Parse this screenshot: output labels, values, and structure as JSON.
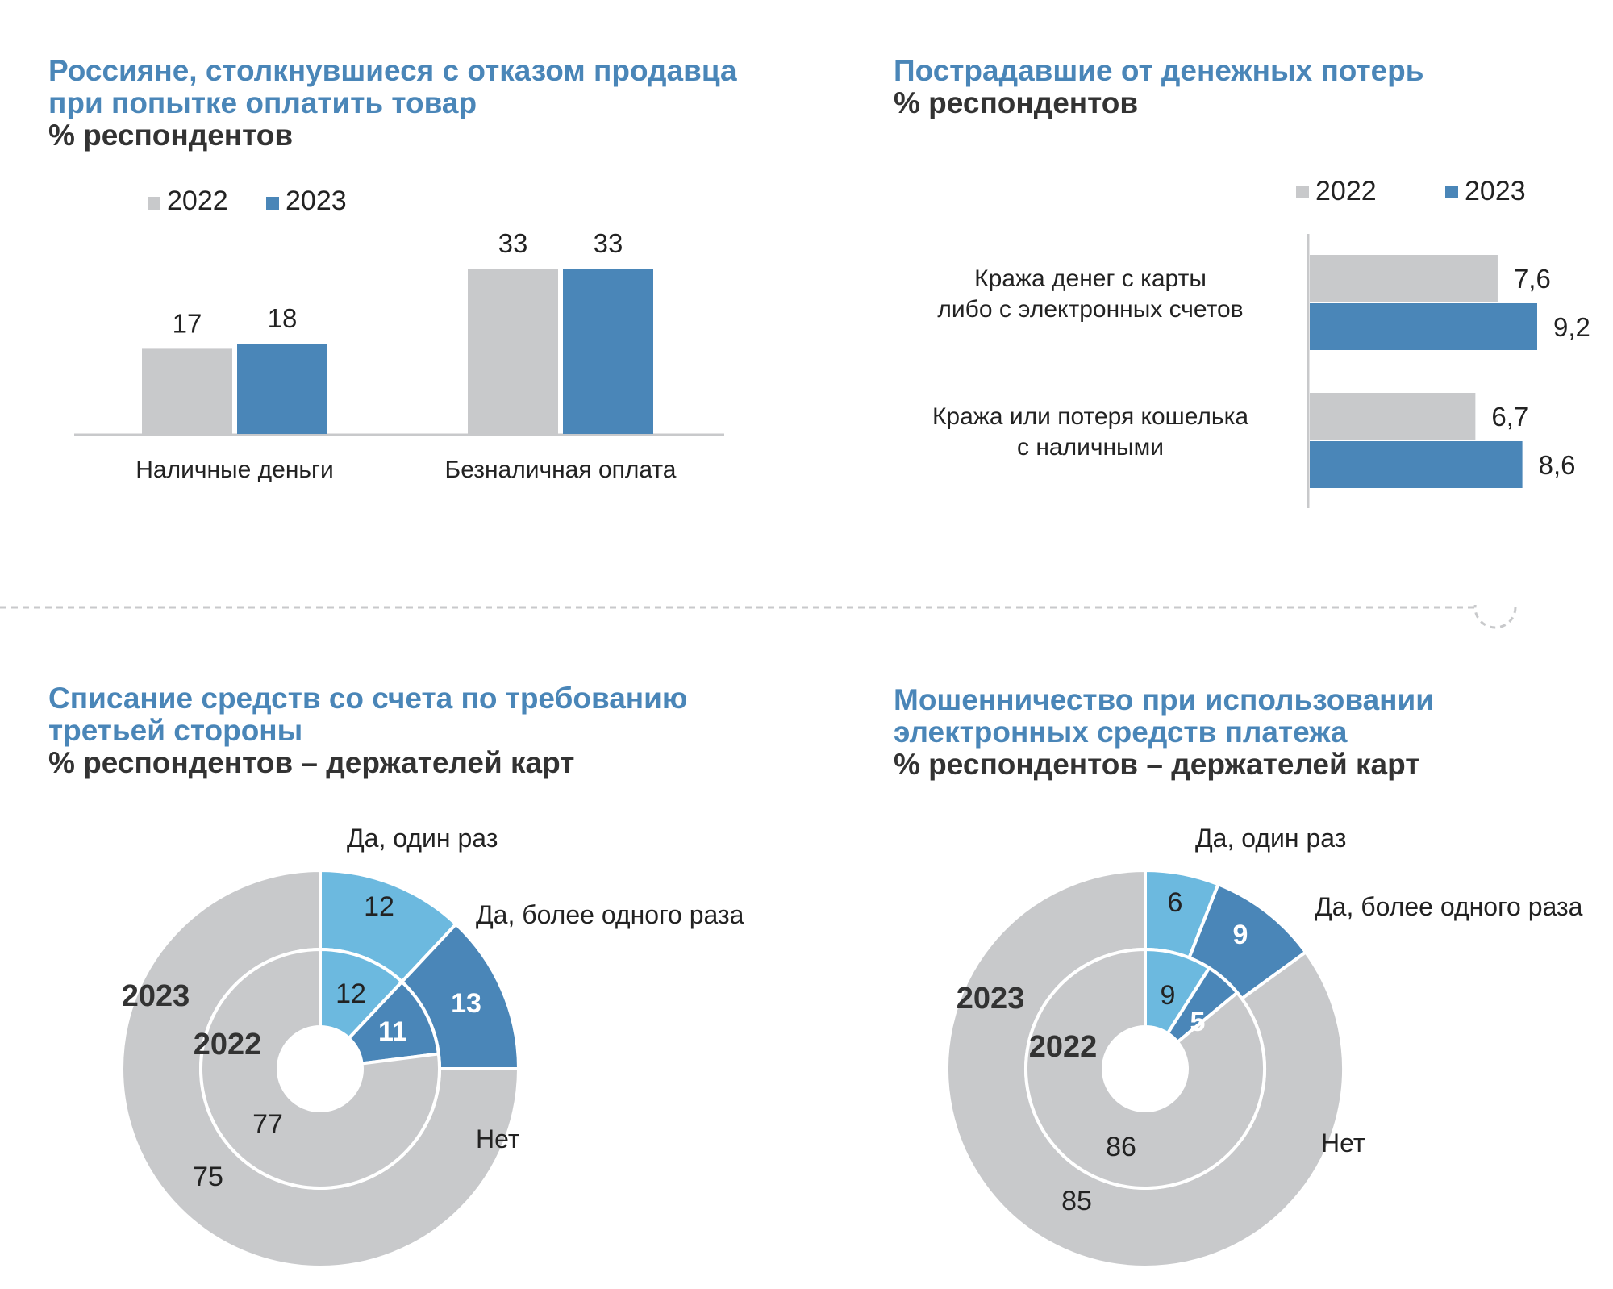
{
  "colors": {
    "gray": "#c8c9cb",
    "blue": "#4a86b8",
    "light_blue": "#6cb9df",
    "title_blue": "#4a86b8",
    "text_dark": "#333333"
  },
  "chart_data": [
    {
      "type": "bar",
      "title": "Россияне, столкнувшиеся с отказом продавца при попытке оплатить товар",
      "title_lines": [
        "Россияне, столкнувшиеся с отказом продавца",
        "при попытке оплатить товар"
      ],
      "subtitle": "% респондентов",
      "categories": [
        "Наличные деньги",
        "Безналичная оплата"
      ],
      "series": [
        {
          "name": "2022",
          "values": [
            17,
            33
          ],
          "labels": [
            "17",
            "33"
          ],
          "color": "#c8c9cb"
        },
        {
          "name": "2023",
          "values": [
            18,
            33
          ],
          "labels": [
            "18",
            "33"
          ],
          "color": "#4a86b8"
        }
      ],
      "legend_placement": "top",
      "grid": false
    },
    {
      "type": "bar",
      "orientation": "horizontal",
      "title": "Пострадавшие от денежных потерь",
      "title_lines": [
        "Пострадавшие от денежных потерь"
      ],
      "subtitle": "% респондентов",
      "categories": [
        [
          "Кража денег с карты",
          "либо с электронных счетов"
        ],
        [
          "Кража или потеря кошелька",
          "с наличными"
        ]
      ],
      "series": [
        {
          "name": "2022",
          "values": [
            7.6,
            6.7
          ],
          "labels": [
            "7,6",
            "6,7"
          ],
          "color": "#c8c9cb"
        },
        {
          "name": "2023",
          "values": [
            9.2,
            8.6
          ],
          "labels": [
            "9,2",
            "8,6"
          ],
          "color": "#4a86b8"
        }
      ],
      "legend_placement": "top-right",
      "grid": false
    },
    {
      "type": "pie",
      "variant": "nested-donut",
      "title": "Списание средств со счета по требованию третьей стороны",
      "title_lines": [
        "Списание средств со счета по требованию",
        "третьей стороны"
      ],
      "subtitle": "% респондентов – держателей карт",
      "slice_labels": [
        "Да, один раз",
        "Да, более одного раза",
        "Нет"
      ],
      "rings": [
        {
          "name": "2023",
          "values": [
            12,
            13,
            75
          ],
          "labels": [
            "12",
            "13",
            "75"
          ]
        },
        {
          "name": "2022",
          "values": [
            12,
            11,
            77
          ],
          "labels": [
            "12",
            "11",
            "77"
          ]
        }
      ]
    },
    {
      "type": "pie",
      "variant": "nested-donut",
      "title": "Мошенничество при использовании электронных средств платежа",
      "title_lines": [
        "Мошенничество при использовании",
        "электронных средств платежа"
      ],
      "subtitle": "% респондентов – держателей карт",
      "slice_labels": [
        "Да, один раз",
        "Да, более одного раза",
        "Нет"
      ],
      "rings": [
        {
          "name": "2023",
          "values": [
            6,
            9,
            85
          ],
          "labels": [
            "6",
            "9",
            "85"
          ]
        },
        {
          "name": "2022",
          "values": [
            9,
            5,
            86
          ],
          "labels": [
            "9",
            "5",
            "86"
          ]
        }
      ]
    }
  ]
}
